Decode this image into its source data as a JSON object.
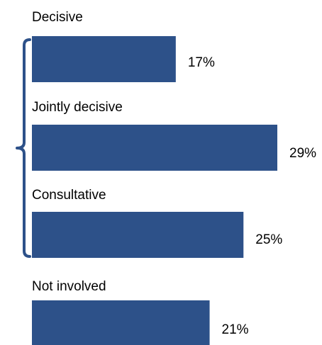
{
  "chart_data": {
    "type": "bar",
    "orientation": "horizontal",
    "categories": [
      "Decisive",
      "Jointly decisive",
      "Consultative",
      "Not involved"
    ],
    "values": [
      17,
      29,
      25,
      21
    ],
    "value_labels": [
      "17%",
      "29%",
      "25%",
      "21%"
    ],
    "unit": "%",
    "xlim": [
      0,
      29
    ],
    "grid": false,
    "legend": "none",
    "bar_color": "#2d5189",
    "bracket_color": "#2d5189",
    "bracket_groups": [
      "Decisive",
      "Jointly decisive",
      "Consultative"
    ]
  }
}
